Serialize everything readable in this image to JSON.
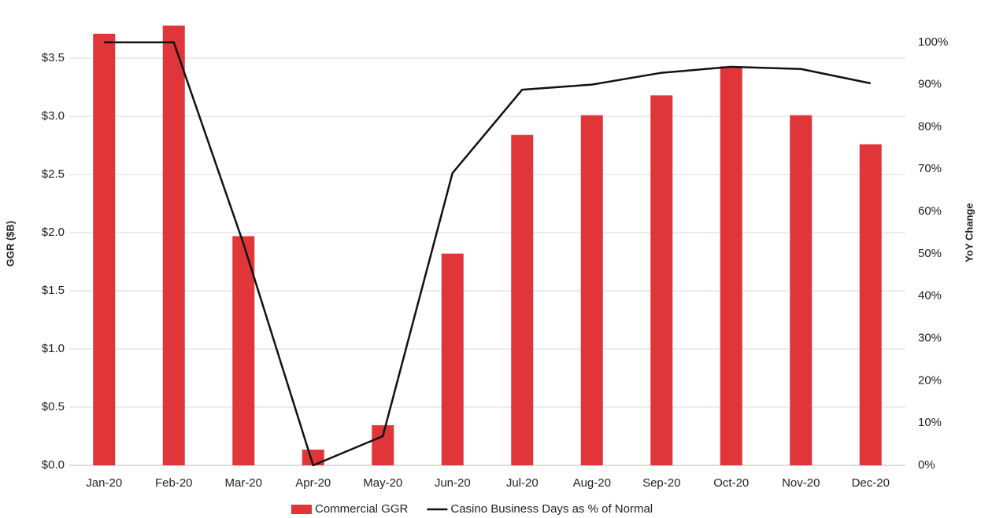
{
  "chart_data": {
    "type": "bar-line",
    "categories": [
      "Jan-20",
      "Feb-20",
      "Mar-20",
      "Apr-20",
      "May-20",
      "Jun-20",
      "Jul-20",
      "Aug-20",
      "Sep-20",
      "Oct-20",
      "Nov-20",
      "Dec-20"
    ],
    "series": [
      {
        "name": "Commercial GGR",
        "type": "bar",
        "color": "#e0363a",
        "axis": "y",
        "values": [
          3.71,
          3.78,
          1.97,
          0.135,
          0.345,
          1.82,
          2.84,
          3.01,
          3.18,
          3.43,
          3.01,
          2.76
        ]
      },
      {
        "name": "Casino Business Days as % of Normal",
        "type": "line",
        "color": "#111111",
        "axis": "y2",
        "values": [
          100,
          100,
          52.4,
          0,
          6.9,
          69.1,
          88.8,
          90,
          92.8,
          94.2,
          93.7,
          90.3
        ]
      }
    ],
    "ylabel": "GGR ($B)",
    "y2label": "YoY Change",
    "ylim": [
      0,
      4
    ],
    "yticks": [
      {
        "value": 0,
        "label": "$0.0"
      },
      {
        "value": 0.5,
        "label": "$0.5"
      },
      {
        "value": 1,
        "label": "$1.0"
      },
      {
        "value": 1.5,
        "label": "$1.5"
      },
      {
        "value": 2,
        "label": "$2.0"
      },
      {
        "value": 2.5,
        "label": "$2.5"
      },
      {
        "value": 3,
        "label": "$3.0"
      },
      {
        "value": 3.5,
        "label": "$3.5"
      }
    ],
    "y2lim": [
      0,
      110
    ],
    "y2ticks": [
      {
        "value": 0,
        "label": "0%"
      },
      {
        "value": 10,
        "label": "10%"
      },
      {
        "value": 20,
        "label": "20%"
      },
      {
        "value": 30,
        "label": "30%"
      },
      {
        "value": 40,
        "label": "40%"
      },
      {
        "value": 50,
        "label": "50%"
      },
      {
        "value": 60,
        "label": "60%"
      },
      {
        "value": 70,
        "label": "70%"
      },
      {
        "value": 80,
        "label": "80%"
      },
      {
        "value": 90,
        "label": "90%"
      },
      {
        "value": 100,
        "label": "100%"
      }
    ],
    "grid": true,
    "legend": "bottom"
  }
}
